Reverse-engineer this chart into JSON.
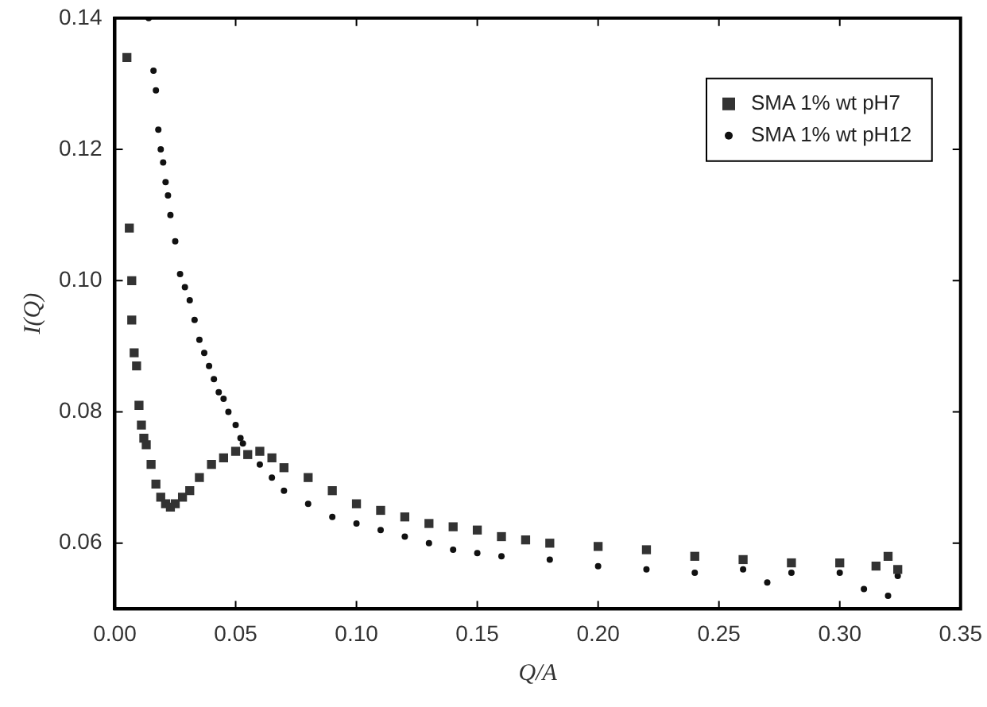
{
  "chart_data": {
    "type": "scatter",
    "xlabel": "Q/A",
    "ylabel": "I(Q)",
    "xlim": [
      0,
      0.35
    ],
    "xticks": [
      {
        "value": 0,
        "label": "0.00"
      },
      0.05,
      {
        "value": 0.1,
        "label": "0.10"
      },
      0.15,
      {
        "value": 0.2,
        "label": "0.20"
      },
      0.25,
      {
        "value": 0.3,
        "label": "0.30"
      },
      0.35
    ],
    "ylim": [
      0.05,
      0.14
    ],
    "yticks": [
      {
        "value": 0.06,
        "label": "0.06"
      },
      {
        "value": 0.08,
        "label": "0.08"
      },
      {
        "value": 0.1,
        "label": "0.10"
      },
      {
        "value": 0.12,
        "label": "0.12"
      },
      {
        "value": 0.14,
        "label": "0.14"
      }
    ],
    "grid": false,
    "legend": "top right",
    "series": [
      {
        "name": "SMA 1% wt pH7",
        "color": "#333333",
        "marker": "square",
        "x": [
          0.005,
          0.006,
          0.007,
          0.007,
          0.008,
          0.009,
          0.01,
          0.011,
          0.012,
          0.013,
          0.015,
          0.017,
          0.019,
          0.021,
          0.023,
          0.025,
          0.028,
          0.031,
          0.035,
          0.04,
          0.045,
          0.05,
          0.055,
          0.06,
          0.065,
          0.07,
          0.08,
          0.09,
          0.1,
          0.11,
          0.12,
          0.13,
          0.14,
          0.15,
          0.16,
          0.17,
          0.18,
          0.2,
          0.22,
          0.24,
          0.26,
          0.28,
          0.3,
          0.315,
          0.32,
          0.324
        ],
        "values": [
          0.134,
          0.108,
          0.1,
          0.094,
          0.089,
          0.087,
          0.081,
          0.078,
          0.076,
          0.075,
          0.072,
          0.069,
          0.067,
          0.066,
          0.0655,
          0.066,
          0.067,
          0.068,
          0.07,
          0.072,
          0.073,
          0.074,
          0.0735,
          0.074,
          0.073,
          0.0715,
          0.07,
          0.068,
          0.066,
          0.065,
          0.064,
          0.063,
          0.0625,
          0.062,
          0.061,
          0.0605,
          0.06,
          0.0595,
          0.059,
          0.058,
          0.0575,
          0.057,
          0.057,
          0.0565,
          0.058,
          0.056
        ]
      },
      {
        "name": "SMA 1% wt pH12",
        "color": "#111111",
        "marker": "circle",
        "x": [
          0.014,
          0.016,
          0.017,
          0.018,
          0.019,
          0.02,
          0.021,
          0.022,
          0.023,
          0.025,
          0.027,
          0.029,
          0.031,
          0.033,
          0.035,
          0.037,
          0.039,
          0.041,
          0.043,
          0.045,
          0.047,
          0.05,
          0.052,
          0.053,
          0.06,
          0.065,
          0.07,
          0.08,
          0.09,
          0.1,
          0.11,
          0.12,
          0.13,
          0.14,
          0.15,
          0.16,
          0.18,
          0.2,
          0.22,
          0.24,
          0.26,
          0.27,
          0.28,
          0.3,
          0.31,
          0.32,
          0.324
        ],
        "values": [
          0.14,
          0.132,
          0.129,
          0.123,
          0.12,
          0.118,
          0.115,
          0.113,
          0.11,
          0.106,
          0.101,
          0.099,
          0.097,
          0.094,
          0.091,
          0.089,
          0.087,
          0.085,
          0.083,
          0.082,
          0.08,
          0.078,
          0.076,
          0.0752,
          0.072,
          0.07,
          0.068,
          0.066,
          0.064,
          0.063,
          0.062,
          0.061,
          0.06,
          0.059,
          0.0585,
          0.058,
          0.0575,
          0.0565,
          0.056,
          0.0555,
          0.056,
          0.054,
          0.0555,
          0.0555,
          0.053,
          0.052,
          0.055
        ]
      }
    ]
  }
}
